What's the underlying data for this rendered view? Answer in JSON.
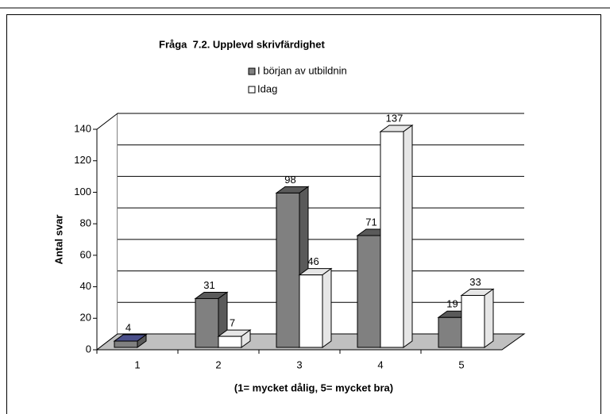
{
  "chart_data": {
    "type": "bar3d",
    "title": "Fråga  7.2. Upplevd skrivfärdighet",
    "xlabel": "(1= mycket dålig, 5= mycket bra)",
    "ylabel": "Antal svar",
    "categories": [
      "1",
      "2",
      "3",
      "4",
      "5"
    ],
    "series": [
      {
        "name": "I början av utbildnin",
        "color": "#808080",
        "values": [
          4,
          31,
          98,
          71,
          19
        ]
      },
      {
        "name": "Idag",
        "color": "#ffffff",
        "values": [
          null,
          7,
          46,
          137,
          33
        ]
      }
    ],
    "ylim": [
      0,
      140
    ],
    "yticks": [
      0,
      20,
      40,
      60,
      80,
      100,
      120,
      140
    ],
    "grid": true
  }
}
